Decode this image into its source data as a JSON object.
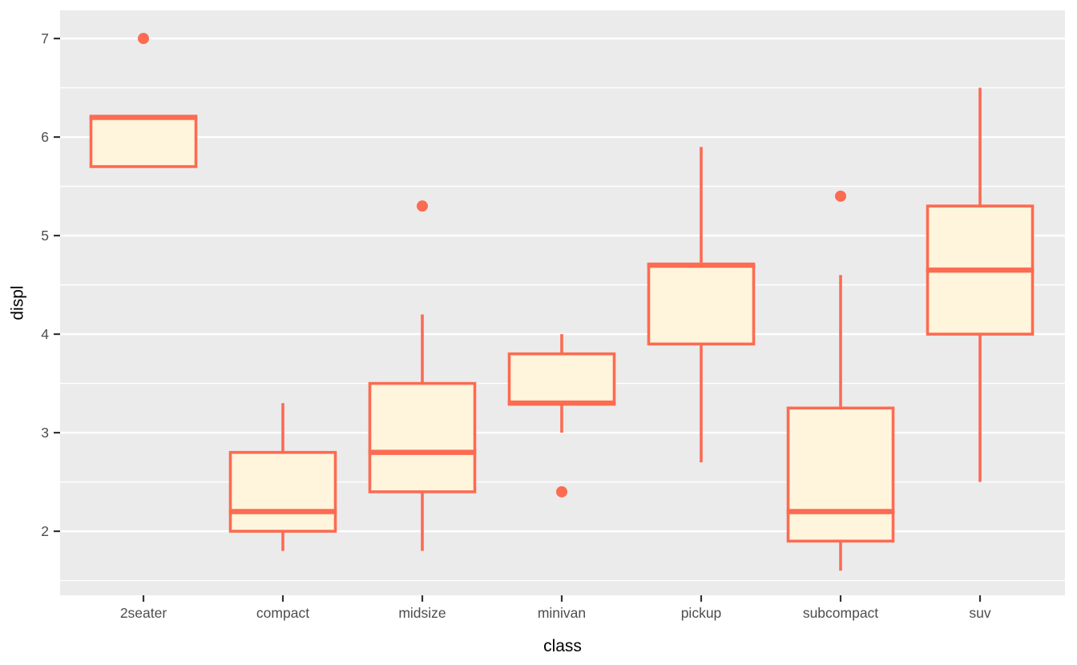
{
  "figure": {
    "x_axis_title": "class",
    "y_axis_title": "displ"
  },
  "chart_data": {
    "type": "boxplot",
    "title": "",
    "xlabel": "class",
    "ylabel": "displ",
    "categories": [
      "2seater",
      "compact",
      "midsize",
      "minivan",
      "pickup",
      "subcompact",
      "suv"
    ],
    "boxes": [
      {
        "category": "2seater",
        "whisker_low": 5.7,
        "q1": 5.7,
        "median": 6.2,
        "q3": 6.2,
        "whisker_high": 6.2,
        "outliers": [
          7.0
        ]
      },
      {
        "category": "compact",
        "whisker_low": 1.8,
        "q1": 2.0,
        "median": 2.2,
        "q3": 2.8,
        "whisker_high": 3.3,
        "outliers": []
      },
      {
        "category": "midsize",
        "whisker_low": 1.8,
        "q1": 2.4,
        "median": 2.8,
        "q3": 3.5,
        "whisker_high": 4.2,
        "outliers": [
          5.3
        ]
      },
      {
        "category": "minivan",
        "whisker_low": 3.0,
        "q1": 3.3,
        "median": 3.3,
        "q3": 3.8,
        "whisker_high": 4.0,
        "outliers": [
          2.4
        ]
      },
      {
        "category": "pickup",
        "whisker_low": 2.7,
        "q1": 3.9,
        "median": 4.7,
        "q3": 4.7,
        "whisker_high": 5.9,
        "outliers": []
      },
      {
        "category": "subcompact",
        "whisker_low": 1.6,
        "q1": 1.9,
        "median": 2.2,
        "q3": 3.25,
        "whisker_high": 4.6,
        "outliers": [
          5.4
        ]
      },
      {
        "category": "suv",
        "whisker_low": 2.5,
        "q1": 4.0,
        "median": 4.65,
        "q3": 5.3,
        "whisker_high": 6.5,
        "outliers": []
      }
    ],
    "y_ticks": [
      2,
      3,
      4,
      5,
      6,
      7
    ],
    "y_tick_labels": [
      "2",
      "3",
      "4",
      "5",
      "6",
      "7"
    ],
    "y_minor_ticks": [
      1.5,
      2.5,
      3.5,
      4.5,
      5.5,
      6.5
    ],
    "ylim": [
      1.35,
      7.285
    ],
    "grid": true,
    "legend": "none",
    "style": {
      "panel_background": "#EBEBEB",
      "gridline_color": "#FFFFFF",
      "box_stroke_color": "#FC6B52",
      "box_fill_color": "#FEF5DC",
      "outlier_color": "#FC6B52",
      "tick_mark_color": "#333333",
      "tick_label_color": "#4D4D4D",
      "axis_title_color": "#000000"
    }
  }
}
